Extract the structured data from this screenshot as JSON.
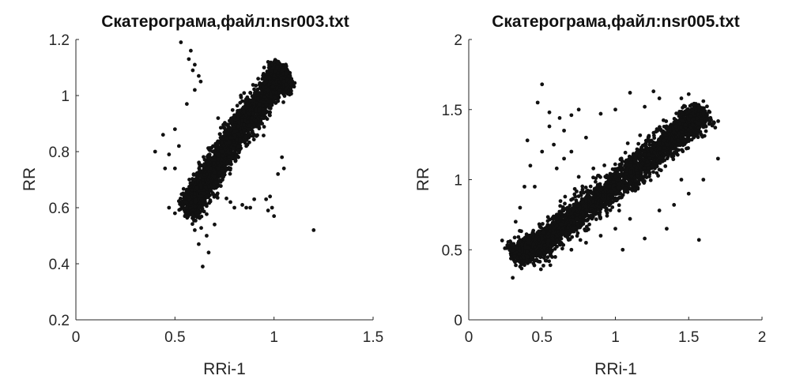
{
  "colors": {
    "points": "#111111",
    "axes": "#262626",
    "background": "#ffffff"
  },
  "chart_data": [
    {
      "type": "scatter",
      "title": "Скатерограма,файл:nsr003.txt",
      "xlabel": "RRi-1",
      "ylabel": "RR",
      "xlim": [
        0,
        1.5
      ],
      "ylim": [
        0.2,
        1.2
      ],
      "xticks": [
        "0",
        "0.5",
        "1",
        "1.5"
      ],
      "yticks": [
        "0.2",
        "0.4",
        "0.6",
        "0.8",
        "1",
        "1.2"
      ],
      "grid": false,
      "series": [
        {
          "points": [
            [
              0.55,
              0.57
            ],
            [
              0.56,
              0.6
            ],
            [
              0.58,
              0.62
            ],
            [
              0.6,
              0.65
            ],
            [
              0.62,
              0.66
            ],
            [
              0.64,
              0.7
            ],
            [
              0.66,
              0.72
            ],
            [
              0.68,
              0.74
            ],
            [
              0.7,
              0.77
            ],
            [
              0.72,
              0.79
            ],
            [
              0.74,
              0.8
            ],
            [
              0.76,
              0.83
            ],
            [
              0.78,
              0.85
            ],
            [
              0.8,
              0.87
            ],
            [
              0.82,
              0.89
            ],
            [
              0.84,
              0.91
            ],
            [
              0.86,
              0.93
            ],
            [
              0.88,
              0.95
            ],
            [
              0.9,
              0.97
            ],
            [
              0.92,
              0.99
            ],
            [
              0.94,
              1.01
            ],
            [
              0.96,
              1.03
            ],
            [
              0.98,
              1.05
            ],
            [
              1.0,
              1.07
            ],
            [
              1.02,
              1.08
            ],
            [
              1.04,
              1.09
            ],
            [
              1.06,
              1.1
            ],
            [
              0.7,
              0.82
            ],
            [
              0.73,
              0.85
            ],
            [
              0.77,
              0.89
            ],
            [
              0.8,
              0.93
            ],
            [
              0.84,
              0.98
            ],
            [
              0.88,
              1.01
            ],
            [
              0.92,
              1.06
            ],
            [
              0.95,
              1.1
            ],
            [
              0.97,
              1.12
            ],
            [
              0.62,
              0.6
            ],
            [
              0.66,
              0.64
            ],
            [
              0.7,
              0.67
            ],
            [
              0.74,
              0.7
            ],
            [
              0.78,
              0.74
            ],
            [
              0.82,
              0.78
            ],
            [
              0.86,
              0.82
            ],
            [
              0.9,
              0.86
            ],
            [
              0.94,
              0.9
            ],
            [
              0.98,
              0.94
            ],
            [
              1.02,
              0.98
            ],
            [
              1.05,
              1.01
            ],
            [
              0.53,
              1.19
            ],
            [
              0.57,
              1.13
            ],
            [
              0.59,
              1.09
            ],
            [
              0.6,
              1.11
            ],
            [
              0.62,
              1.07
            ],
            [
              0.63,
              1.05
            ],
            [
              0.58,
              1.16
            ],
            [
              0.6,
              1.02
            ],
            [
              0.56,
              0.97
            ],
            [
              0.4,
              0.8
            ],
            [
              0.47,
              0.79
            ],
            [
              0.45,
              0.74
            ],
            [
              0.5,
              0.74
            ],
            [
              0.52,
              0.82
            ],
            [
              0.5,
              0.88
            ],
            [
              0.44,
              0.86
            ],
            [
              0.78,
              0.62
            ],
            [
              0.8,
              0.6
            ],
            [
              0.84,
              0.61
            ],
            [
              0.86,
              0.6
            ],
            [
              0.88,
              0.6
            ],
            [
              0.9,
              0.63
            ],
            [
              0.96,
              0.63
            ],
            [
              0.98,
              0.64
            ],
            [
              0.99,
              0.6
            ],
            [
              0.97,
              0.59
            ],
            [
              1.0,
              0.57
            ],
            [
              1.2,
              0.52
            ],
            [
              0.64,
              0.39
            ],
            [
              0.67,
              0.44
            ],
            [
              0.6,
              0.52
            ],
            [
              0.66,
              0.5
            ],
            [
              0.62,
              0.47
            ],
            [
              0.7,
              0.54
            ],
            [
              1.04,
              0.78
            ],
            [
              1.02,
              0.72
            ],
            [
              1.05,
              0.74
            ],
            [
              0.47,
              0.6
            ],
            [
              0.5,
              0.58
            ]
          ],
          "dense_band": {
            "centerline": [
              [
                0.56,
                0.58
              ],
              [
                0.7,
                0.74
              ],
              [
                0.85,
                0.9
              ],
              [
                1.0,
                1.04
              ],
              [
                1.06,
                1.08
              ]
            ],
            "orthogonal_spread": 0.055
          }
        }
      ]
    },
    {
      "type": "scatter",
      "title": "Скатерограма,файл:nsr005.txt",
      "xlabel": "RRi-1",
      "ylabel": "RR",
      "xlim": [
        0,
        2
      ],
      "ylim": [
        0,
        2
      ],
      "xticks": [
        "0",
        "0.5",
        "1",
        "1.5",
        "2"
      ],
      "yticks": [
        "0",
        "0.5",
        "1",
        "1.5",
        "2"
      ],
      "grid": false,
      "series": [
        {
          "points": [
            [
              0.3,
              0.3
            ],
            [
              0.35,
              0.38
            ],
            [
              0.4,
              0.45
            ],
            [
              0.45,
              0.52
            ],
            [
              0.5,
              0.58
            ],
            [
              0.6,
              0.67
            ],
            [
              0.7,
              0.76
            ],
            [
              0.8,
              0.85
            ],
            [
              0.9,
              0.93
            ],
            [
              1.0,
              1.02
            ],
            [
              1.1,
              1.1
            ],
            [
              1.2,
              1.18
            ],
            [
              1.3,
              1.26
            ],
            [
              1.4,
              1.34
            ],
            [
              1.5,
              1.43
            ],
            [
              1.55,
              1.5
            ],
            [
              1.6,
              1.56
            ],
            [
              0.5,
              1.68
            ],
            [
              0.47,
              1.55
            ],
            [
              0.55,
              1.48
            ],
            [
              0.62,
              1.44
            ],
            [
              0.7,
              1.46
            ],
            [
              0.75,
              1.5
            ],
            [
              0.9,
              1.47
            ],
            [
              1.0,
              1.5
            ],
            [
              1.1,
              1.62
            ],
            [
              1.2,
              1.52
            ],
            [
              1.26,
              1.63
            ],
            [
              1.3,
              1.58
            ],
            [
              1.45,
              1.58
            ],
            [
              1.5,
              1.61
            ],
            [
              0.4,
              1.28
            ],
            [
              0.42,
              1.1
            ],
            [
              0.5,
              1.2
            ],
            [
              0.58,
              1.25
            ],
            [
              0.6,
              1.08
            ],
            [
              0.65,
              1.15
            ],
            [
              0.7,
              1.2
            ],
            [
              0.75,
              1.02
            ],
            [
              0.8,
              1.3
            ],
            [
              0.85,
              1.08
            ],
            [
              0.55,
              1.38
            ],
            [
              0.65,
              1.35
            ],
            [
              0.45,
              0.95
            ],
            [
              0.35,
              0.8
            ],
            [
              0.38,
              0.95
            ],
            [
              0.32,
              0.7
            ],
            [
              0.7,
              0.5
            ],
            [
              0.8,
              0.55
            ],
            [
              0.9,
              0.6
            ],
            [
              1.0,
              0.65
            ],
            [
              1.05,
              0.5
            ],
            [
              1.1,
              0.72
            ],
            [
              1.2,
              0.58
            ],
            [
              1.3,
              0.78
            ],
            [
              1.4,
              0.82
            ],
            [
              1.35,
              0.65
            ],
            [
              1.5,
              0.9
            ],
            [
              1.57,
              0.57
            ],
            [
              1.6,
              1.0
            ],
            [
              1.7,
              1.15
            ],
            [
              1.67,
              1.4
            ],
            [
              1.45,
              1.0
            ]
          ],
          "dense_band": {
            "centerline": [
              [
                0.32,
                0.45
              ],
              [
                0.5,
                0.55
              ],
              [
                0.8,
                0.8
              ],
              [
                1.1,
                1.05
              ],
              [
                1.4,
                1.3
              ],
              [
                1.6,
                1.48
              ]
            ],
            "orthogonal_spread": 0.1
          }
        }
      ]
    }
  ]
}
